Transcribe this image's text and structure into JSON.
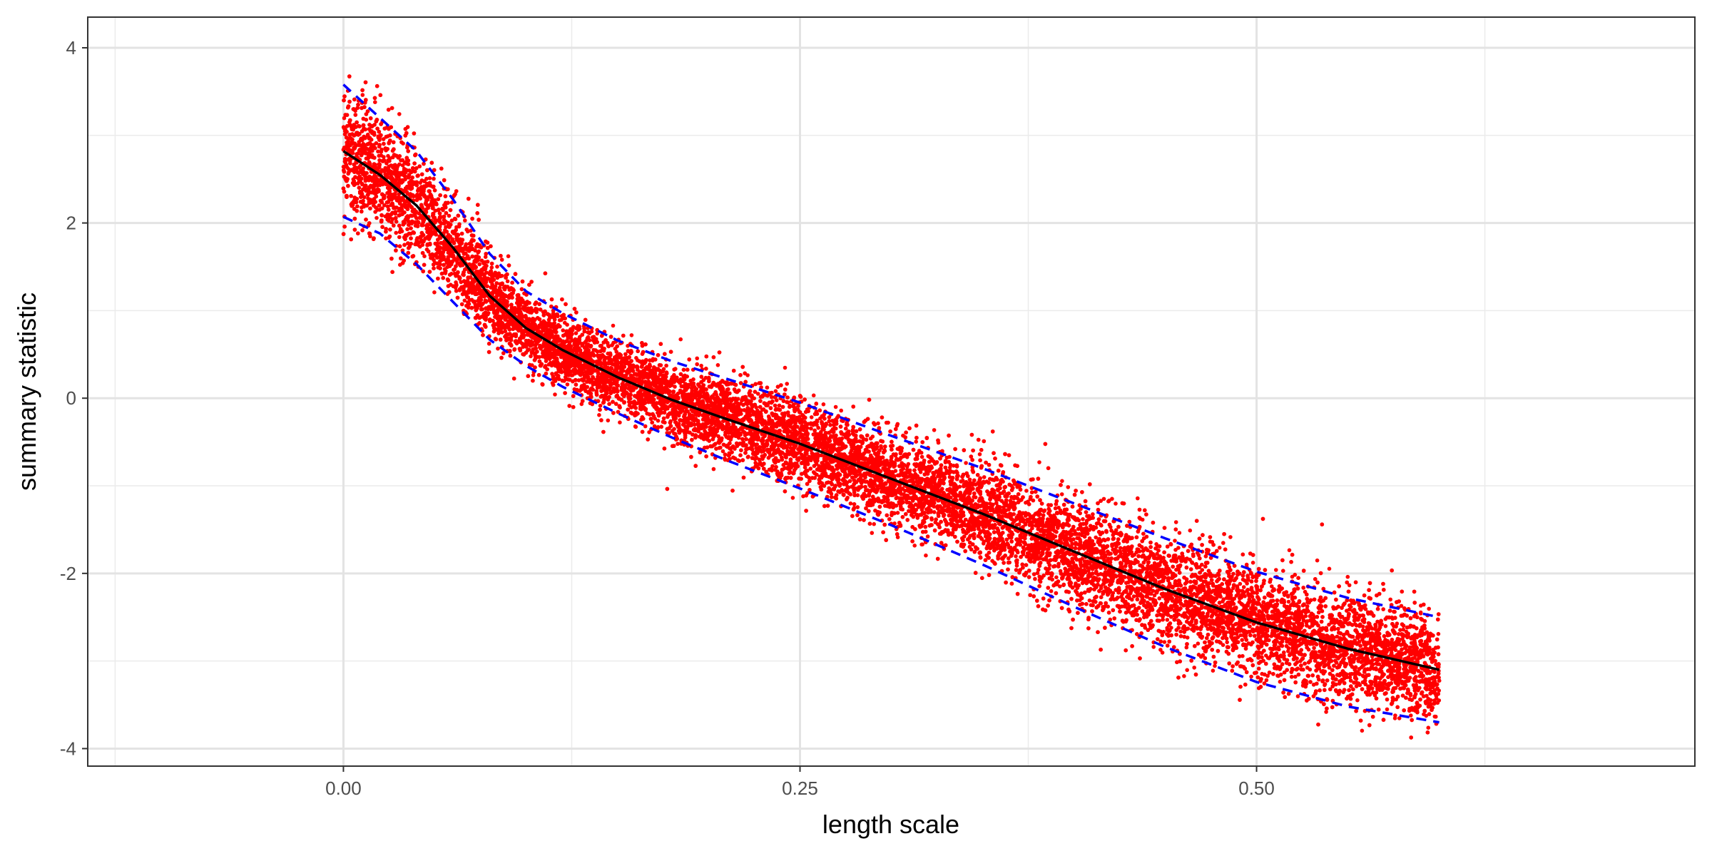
{
  "chart_data": {
    "type": "scatter",
    "title": "",
    "xlabel": "length scale",
    "ylabel": "summary statistic",
    "xlim": [
      -0.14,
      0.74
    ],
    "ylim": [
      -4.2,
      4.35
    ],
    "x_ticks": [
      {
        "value": 0.0,
        "label": "0.00"
      },
      {
        "value": 0.25,
        "label": "0.25"
      },
      {
        "value": 0.5,
        "label": "0.50"
      }
    ],
    "x_minor_ticks": [
      -0.125,
      0.125,
      0.375,
      0.625
    ],
    "y_ticks": [
      {
        "value": 4,
        "label": "4"
      },
      {
        "value": 2,
        "label": "2"
      },
      {
        "value": 0,
        "label": "0"
      },
      {
        "value": -2,
        "label": "-2"
      },
      {
        "value": -4,
        "label": "-4"
      }
    ],
    "y_minor_ticks": [
      3,
      1,
      -1,
      -3
    ],
    "grid": true,
    "legend": "none",
    "points_color": "#ff0000",
    "points_x_range": [
      0.0,
      0.6
    ],
    "points_count": 20000,
    "series": [
      {
        "role": "mean",
        "color": "#000000",
        "dash": "solid",
        "x": [
          0.0,
          0.02,
          0.04,
          0.06,
          0.08,
          0.1,
          0.12,
          0.15,
          0.18,
          0.21,
          0.25,
          0.3,
          0.35,
          0.4,
          0.45,
          0.5,
          0.55,
          0.6
        ],
        "y": [
          2.82,
          2.55,
          2.2,
          1.72,
          1.17,
          0.8,
          0.55,
          0.24,
          -0.02,
          -0.24,
          -0.52,
          -0.92,
          -1.32,
          -1.75,
          -2.18,
          -2.56,
          -2.86,
          -3.1
        ]
      },
      {
        "role": "upper",
        "color": "#0000ff",
        "dash": "dashed",
        "x": [
          0.0,
          0.02,
          0.04,
          0.06,
          0.08,
          0.1,
          0.12,
          0.15,
          0.18,
          0.21,
          0.25,
          0.3,
          0.35,
          0.4,
          0.45,
          0.5,
          0.55,
          0.6
        ],
        "y": [
          3.58,
          3.2,
          2.82,
          2.27,
          1.65,
          1.22,
          0.97,
          0.66,
          0.42,
          0.22,
          -0.05,
          -0.43,
          -0.8,
          -1.2,
          -1.6,
          -1.98,
          -2.28,
          -2.5
        ]
      },
      {
        "role": "lower",
        "color": "#0000ff",
        "dash": "dashed",
        "x": [
          0.0,
          0.02,
          0.04,
          0.06,
          0.08,
          0.1,
          0.12,
          0.15,
          0.18,
          0.21,
          0.25,
          0.3,
          0.35,
          0.4,
          0.45,
          0.5,
          0.55,
          0.6
        ],
        "y": [
          2.07,
          1.88,
          1.53,
          1.1,
          0.67,
          0.37,
          0.13,
          -0.17,
          -0.45,
          -0.71,
          -1.03,
          -1.45,
          -1.9,
          -2.38,
          -2.84,
          -3.24,
          -3.52,
          -3.7
        ]
      }
    ]
  }
}
